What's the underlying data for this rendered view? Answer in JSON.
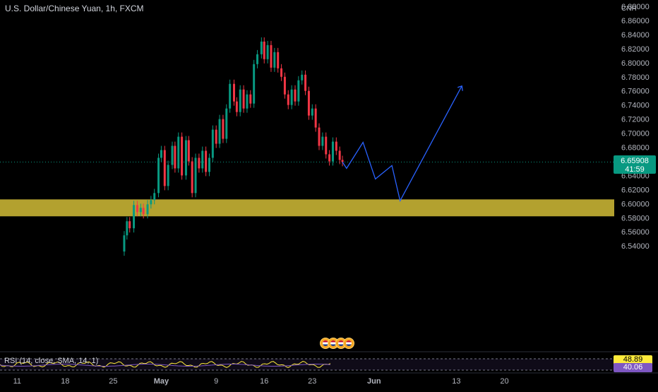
{
  "header": {
    "symbol_title": "U.S. Dollar/Chinese Yuan, 1h, FXCM"
  },
  "axis": {
    "currency_label": "CNH"
  },
  "current_price": {
    "value": "6.65908",
    "countdown": "41:59",
    "color": "#089981"
  },
  "zone": {
    "color": "#b3a12f",
    "from": 6.582,
    "to": 6.606
  },
  "rsi": {
    "title": "RSI (14, close, SMA, 14, 1)",
    "value_rsi": "48.89",
    "value_sma": "40.06",
    "rsi_color": "#ffeb3b",
    "sma_color": "#7e57c2"
  },
  "events": {
    "count": 4,
    "icon": "us-flag-event-icon"
  },
  "chart_data": {
    "type": "line",
    "title": "U.S. Dollar/Chinese Yuan, 1h, FXCM",
    "ylabel": "CNH",
    "ylim": [
      6.52,
      6.89
    ],
    "y_ticks": [
      "6.88000",
      "6.86000",
      "6.84000",
      "6.82000",
      "6.80000",
      "6.78000",
      "6.76000",
      "6.74000",
      "6.72000",
      "6.70000",
      "6.68000",
      "6.66000",
      "6.64000",
      "6.62000",
      "6.60000",
      "6.58000",
      "6.56000",
      "6.54000"
    ],
    "x_ticks": [
      "11",
      "18",
      "25",
      "May",
      "9",
      "16",
      "23",
      "Jun",
      "13",
      "20"
    ],
    "x_tick_days": [
      -20,
      -13,
      -6,
      1,
      9,
      16,
      23,
      32,
      44,
      51
    ],
    "x_range_days": [
      -22.5,
      67
    ],
    "price_series": {
      "name": "USDCNH close",
      "x_days": [
        -5,
        -4.4,
        -4,
        -3.6,
        -3,
        -2.5,
        -2,
        -1.6,
        -1,
        -0.5,
        0,
        0.6,
        1,
        1.5,
        2,
        2.6,
        3,
        3.5,
        4,
        4.6,
        5,
        5.5,
        6,
        6.5,
        7,
        7.5,
        8,
        8.5,
        9,
        9.5,
        10,
        10.5,
        11,
        11.6,
        12,
        12.5,
        13,
        13.5,
        14,
        14.5,
        15,
        15.6,
        16,
        16.5,
        17,
        17.5,
        18,
        18.5,
        19,
        19.5,
        20,
        20.5,
        21,
        21.5,
        22,
        22.5,
        23,
        23.5,
        24,
        24.5,
        25,
        25.5,
        26,
        26.5,
        27,
        27.4
      ],
      "values": [
        6.532,
        6.555,
        6.575,
        6.565,
        6.598,
        6.588,
        6.594,
        6.585,
        6.599,
        6.605,
        6.615,
        6.665,
        6.676,
        6.625,
        6.655,
        6.682,
        6.65,
        6.695,
        6.64,
        6.69,
        6.66,
        6.615,
        6.665,
        6.65,
        6.675,
        6.645,
        6.665,
        6.705,
        6.685,
        6.72,
        6.692,
        6.735,
        6.77,
        6.745,
        6.73,
        6.762,
        6.735,
        6.755,
        6.742,
        6.798,
        6.812,
        6.83,
        6.805,
        6.825,
        6.793,
        6.815,
        6.792,
        6.78,
        6.755,
        6.74,
        6.762,
        6.745,
        6.775,
        6.783,
        6.76,
        6.725,
        6.735,
        6.708,
        6.682,
        6.695,
        6.67,
        6.66,
        6.688,
        6.675,
        6.662,
        6.659
      ]
    },
    "projection": {
      "name": "projection",
      "color": "#2962ff",
      "x_days": [
        27.4,
        28,
        30.4,
        32.2,
        34.6,
        35.8,
        44.8
      ],
      "values": [
        6.659,
        6.65,
        6.687,
        6.635,
        6.654,
        6.604,
        6.767
      ]
    },
    "grid": false,
    "legend": "none"
  }
}
